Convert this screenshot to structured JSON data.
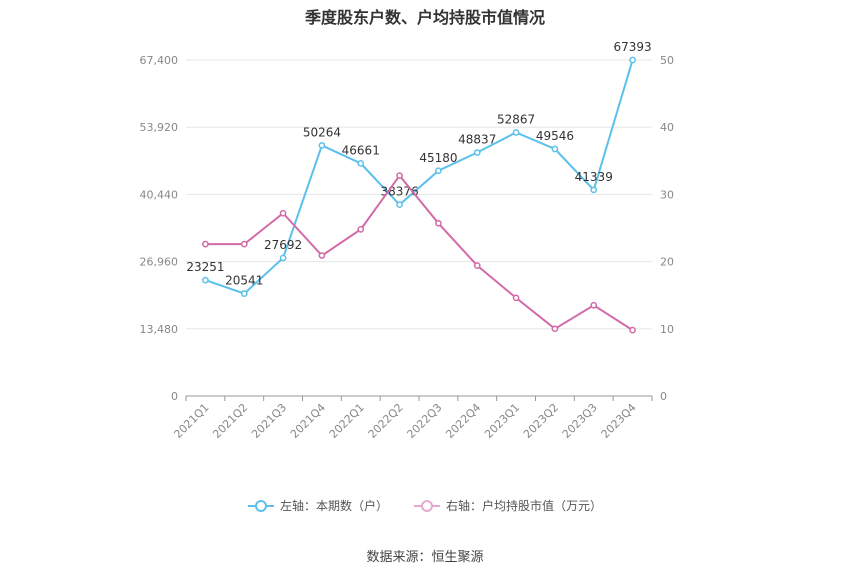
{
  "chart_data": {
    "type": "line",
    "title": "季度股东户数、户均持股市值情况",
    "categories": [
      "2021Q1",
      "2021Q2",
      "2021Q3",
      "2021Q4",
      "2022Q1",
      "2022Q2",
      "2022Q3",
      "2022Q4",
      "2023Q1",
      "2023Q2",
      "2023Q3",
      "2023Q4"
    ],
    "left_axis": {
      "ticks": [
        "0",
        "13,480",
        "26,960",
        "40,440",
        "53,920",
        "67,400"
      ],
      "ylim": [
        0,
        67400
      ]
    },
    "right_axis": {
      "ticks": [
        "0",
        "10",
        "20",
        "30",
        "40",
        "50"
      ],
      "ylim": [
        0,
        50
      ]
    },
    "series": [
      {
        "name": "左轴：本期数（户）",
        "axis": "left",
        "color": "#5bc0eb",
        "values": [
          23251,
          20541,
          27692,
          50264,
          46661,
          38376,
          45180,
          48837,
          52867,
          49546,
          41339,
          67393
        ],
        "labels": [
          "23251",
          "20541",
          "27692",
          "50264",
          "46661",
          "38376",
          "45180",
          "48837",
          "52867",
          "49546",
          "41339",
          "67393"
        ]
      },
      {
        "name": "右轴：户均持股市值（万元）",
        "axis": "right",
        "color": "#d36aa8",
        "values": [
          22.6,
          22.6,
          27.2,
          20.9,
          24.8,
          32.8,
          25.7,
          19.4,
          14.6,
          10.0,
          13.5,
          9.8
        ]
      }
    ],
    "grid": true,
    "legend_position": "bottom"
  },
  "source": "数据来源：恒生聚源"
}
